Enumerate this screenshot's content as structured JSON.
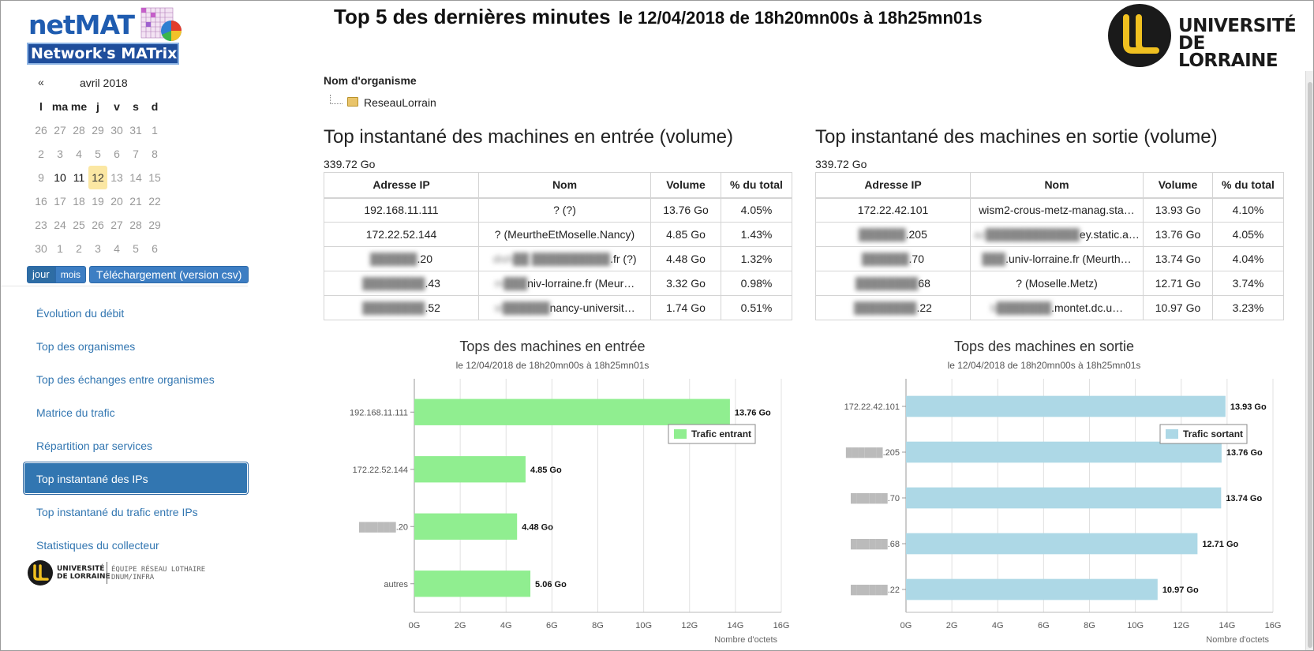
{
  "app": {
    "logo_word": "netMAT",
    "logo_band": "Network's MATrix"
  },
  "header": {
    "title": "Top 5 des dernières minutes",
    "subtitle": "le 12/04/2018 de 18h20mn00s à 18h25mn01s"
  },
  "university": {
    "line1": "UNIVERSITÉ",
    "line2": "DE LORRAINE"
  },
  "calendar": {
    "prev": "«",
    "month": "avril 2018",
    "weekdays": [
      "l",
      "ma",
      "me",
      "j",
      "v",
      "s",
      "d"
    ],
    "weeks": [
      [
        "26",
        "27",
        "28",
        "29",
        "30",
        "31",
        "1"
      ],
      [
        "2",
        "3",
        "4",
        "5",
        "6",
        "7",
        "8"
      ],
      [
        "9",
        "10",
        "11",
        "12",
        "13",
        "14",
        "15"
      ],
      [
        "16",
        "17",
        "18",
        "19",
        "20",
        "21",
        "22"
      ],
      [
        "23",
        "24",
        "25",
        "26",
        "27",
        "28",
        "29"
      ],
      [
        "30",
        "1",
        "2",
        "3",
        "4",
        "5",
        "6"
      ]
    ],
    "selected_day": "12"
  },
  "buttons": {
    "day": "jour",
    "month": "mois",
    "download": "Téléchargement (version csv)"
  },
  "nav": {
    "items": [
      "Évolution du débit",
      "Top des organismes",
      "Top des échanges entre organismes",
      "Matrice du trafic",
      "Répartition par services",
      "Top instantané des IPs",
      "Top instantané du trafic entre IPs",
      "Statistiques du collecteur"
    ],
    "active_index": 5
  },
  "footer_logo": {
    "line1": "UNIVERSITÉ",
    "line2": "DE LORRAINE",
    "team1": "ÉQUIPE RÉSEAU LOTHAIRE",
    "team2": "DNUM/INFRA"
  },
  "org": {
    "label": "Nom d'organisme",
    "tree_item": "ReseauLorrain"
  },
  "panel_in": {
    "title": "Top instantané des machines en entrée (volume)",
    "total": "339.72 Go",
    "columns": [
      "Adresse IP",
      "Nom",
      "Volume",
      "% du total"
    ],
    "rows": [
      {
        "ip": "192.168.11.111",
        "name": "? (?)",
        "volume": "13.76 Go",
        "pct": "4.05%"
      },
      {
        "ip": "172.22.52.144",
        "name": "? (MeurtheEtMoselle.Nancy)",
        "volume": "4.85 Go",
        "pct": "1.43%"
      },
      {
        "ip": ".20",
        "name": ".fr (?)",
        "volume": "4.48 Go",
        "pct": "1.32%"
      },
      {
        "ip": ".43",
        "name": "niv-lorraine.fr (Meur…",
        "volume": "3.32 Go",
        "pct": "0.98%"
      },
      {
        "ip": ".52",
        "name": "nancy-universit…",
        "volume": "1.74 Go",
        "pct": "0.51%"
      }
    ]
  },
  "panel_out": {
    "title": "Top instantané des machines en sortie (volume)",
    "total": "339.72 Go",
    "columns": [
      "Adresse IP",
      "Nom",
      "Volume",
      "% du total"
    ],
    "rows": [
      {
        "ip": "172.22.42.101",
        "name": "wism2-crous-metz-manag.sta…",
        "volume": "13.93 Go",
        "pct": "4.10%"
      },
      {
        "ip": ".205",
        "name": "ey.static.a…",
        "volume": "13.76 Go",
        "pct": "4.05%"
      },
      {
        "ip": ".70",
        "name": ".univ-lorraine.fr (Meurth…",
        "volume": "13.74 Go",
        "pct": "4.04%"
      },
      {
        "ip": "68",
        "name": "? (Moselle.Metz)",
        "volume": "12.71 Go",
        "pct": "3.74%"
      },
      {
        "ip": ".22",
        "name": ".montet.dc.u…",
        "volume": "10.97 Go",
        "pct": "3.23%"
      }
    ]
  },
  "chart_data": [
    {
      "type": "bar",
      "orientation": "horizontal",
      "title": "Tops des machines en entrée",
      "subtitle": "le 12/04/2018 de 18h20mn00s à 18h25mn01s",
      "categories": [
        "192.168.11.111",
        "172.22.52.144",
        ".20",
        "autres"
      ],
      "series": [
        {
          "name": "Trafic entrant",
          "values": [
            13.76,
            4.85,
            4.48,
            5.06
          ],
          "color": "#90ee90"
        }
      ],
      "data_labels": [
        "13.76 Go",
        "4.85 Go",
        "4.48 Go",
        "5.06 Go"
      ],
      "xlim": [
        0,
        16
      ],
      "xticks": [
        "0G",
        "2G",
        "4G",
        "6G",
        "8G",
        "10G",
        "12G",
        "14G",
        "16G"
      ],
      "xlabel": "Nombre d'octets",
      "grid": true,
      "legend_position": "top-right"
    },
    {
      "type": "bar",
      "orientation": "horizontal",
      "title": "Tops des machines en sortie",
      "subtitle": "le 12/04/2018 de 18h20mn00s à 18h25mn01s",
      "categories": [
        "172.22.42.101",
        ".205",
        ".70",
        ".68",
        ".22"
      ],
      "series": [
        {
          "name": "Trafic sortant",
          "values": [
            13.93,
            13.76,
            13.74,
            12.71,
            10.97
          ],
          "color": "#add8e6"
        }
      ],
      "data_labels": [
        "13.93 Go",
        "13.76 Go",
        "13.74 Go",
        "12.71 Go",
        "10.97 Go"
      ],
      "xlim": [
        0,
        16
      ],
      "xticks": [
        "0G",
        "2G",
        "4G",
        "6G",
        "8G",
        "10G",
        "12G",
        "14G",
        "16G"
      ],
      "xlabel": "Nombre d'octets",
      "grid": true,
      "legend_position": "top-right"
    }
  ]
}
